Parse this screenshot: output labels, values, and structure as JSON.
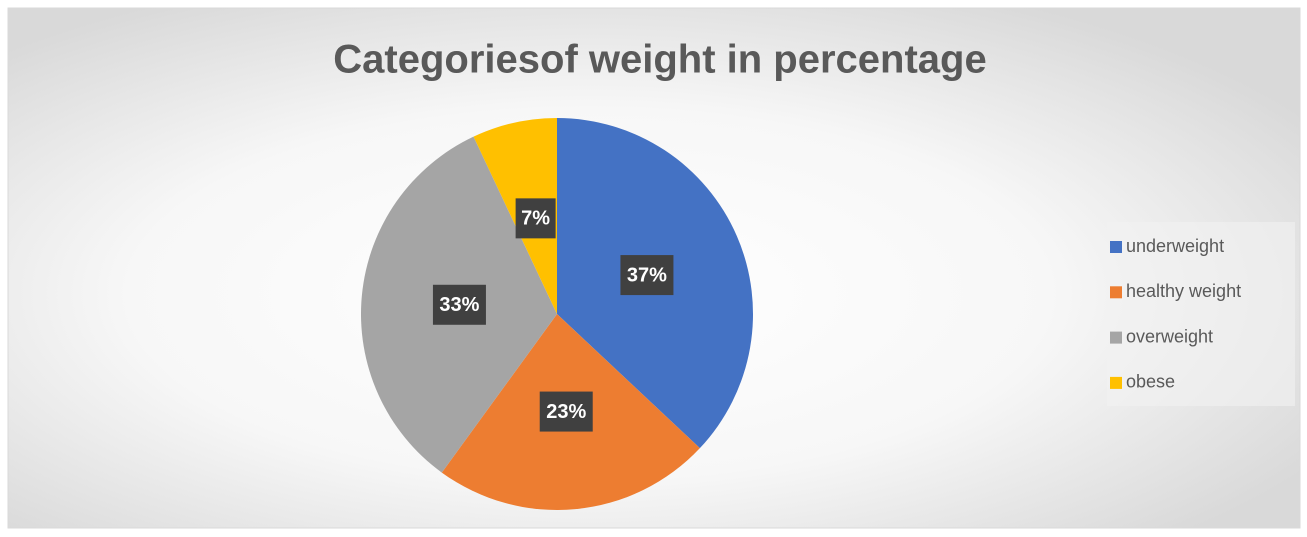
{
  "chart_data": {
    "type": "pie",
    "title": "Categoriesof weight in percentage",
    "categories": [
      "underweight",
      "healthy weight",
      "overweight",
      "obese"
    ],
    "values": [
      37,
      23,
      33,
      7
    ],
    "value_labels": [
      "37%",
      "23%",
      "33%",
      "7%"
    ],
    "colors": [
      "#4472c4",
      "#ed7d31",
      "#a5a5a5",
      "#ffc000"
    ],
    "legend": "right"
  }
}
